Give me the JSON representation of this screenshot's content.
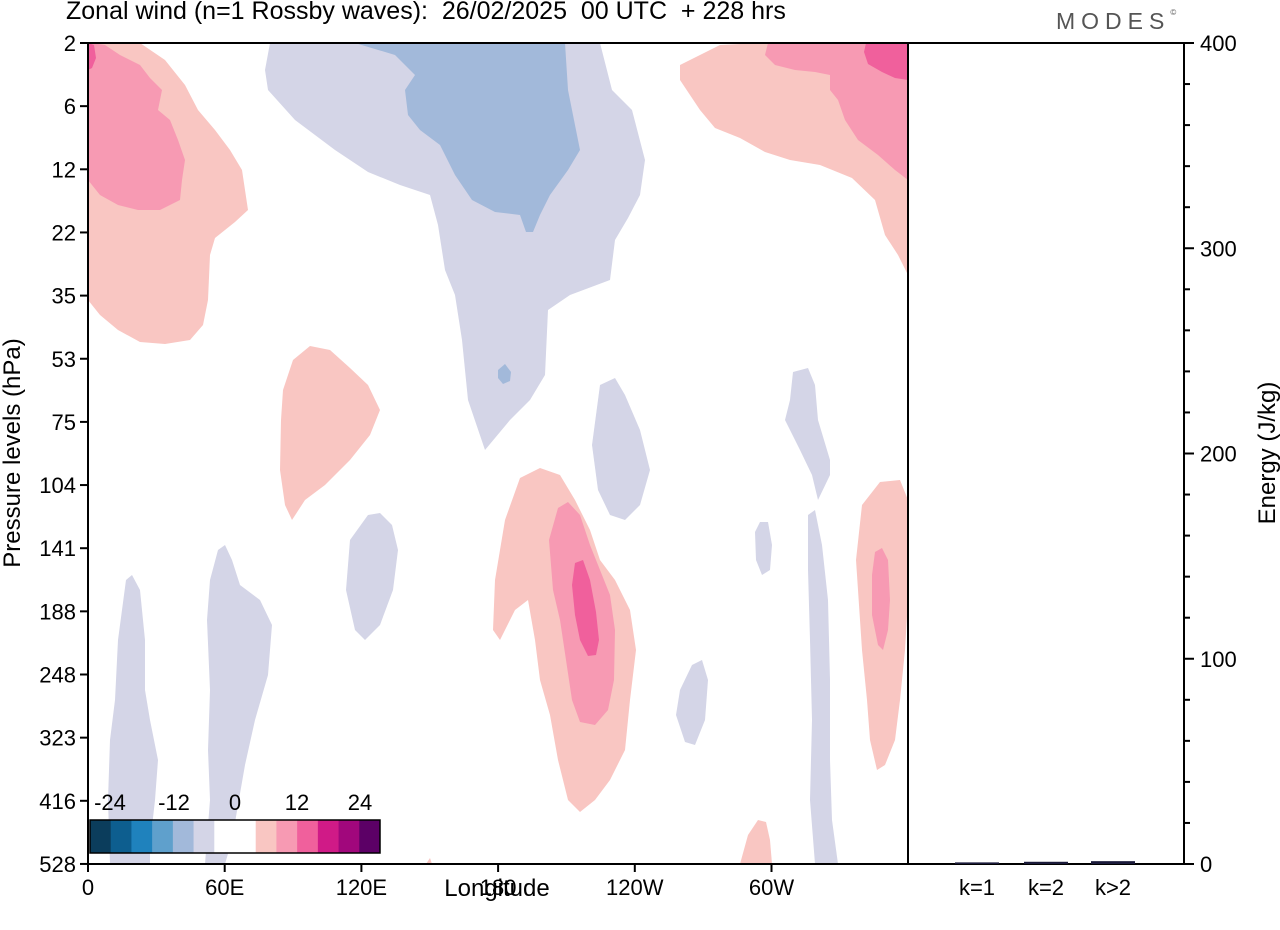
{
  "header": {
    "title": "Zonal wind (n=1 Rossby waves):  26/02/2025  00 UTC  + 228 hrs",
    "brand": "MODES",
    "brand_mark": "©"
  },
  "chart_data": [
    {
      "type": "heatmap",
      "xlabel": "Longitude",
      "ylabel": "Pressure levels (hPa)",
      "x_ticks": [
        "0",
        "60E",
        "120E",
        "180",
        "120W",
        "60W"
      ],
      "y_ticks": [
        "2",
        "6",
        "12",
        "22",
        "35",
        "53",
        "75",
        "104",
        "141",
        "188",
        "248",
        "323",
        "416",
        "528"
      ],
      "colorbar": {
        "labels": [
          "-24",
          "-12",
          "0",
          "12",
          "24"
        ],
        "colors": [
          "#0b3d5c",
          "#0d5e8f",
          "#1f82bd",
          "#5fa0cc",
          "#a2b9da",
          "#d4d5e7",
          "#ffffff",
          "#ffffff",
          "#f9c6c2",
          "#f79ab3",
          "#f0609c",
          "#d01a87",
          "#a1077c",
          "#5c0066"
        ]
      },
      "positive_color_light": "#f9c6c2",
      "positive_color_mid": "#f79ab3",
      "positive_color_strong": "#f0609c",
      "positive_color_max": "#d01a87",
      "negative_color_light": "#d4d5e7",
      "negative_color_mid": "#a2b9da"
    },
    {
      "type": "bar",
      "ylabel": "Energy (J/kg)",
      "categories": [
        "k=1",
        "k=2",
        "k>2"
      ],
      "values": [
        0.3,
        0.6,
        0.9
      ],
      "ylim": [
        0,
        400
      ],
      "y_ticks": [
        "0",
        "100",
        "200",
        "300",
        "400"
      ],
      "bar_color": "#1a1a3a"
    }
  ]
}
